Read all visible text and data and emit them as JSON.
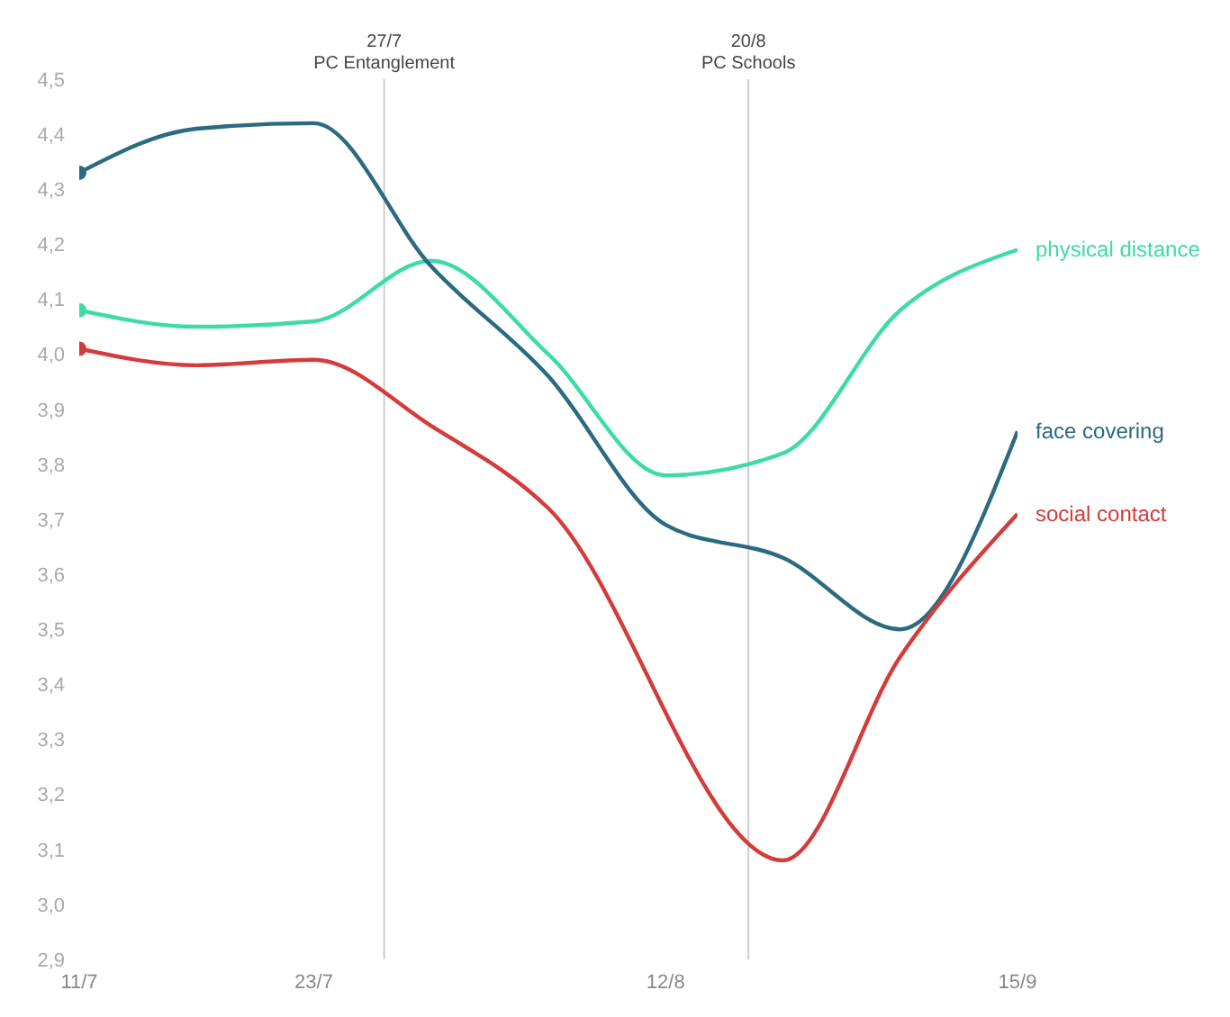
{
  "chart_data": {
    "type": "line",
    "categories": [
      "11/7",
      null,
      "23/7",
      null,
      null,
      "12/8",
      null,
      null,
      "15/9"
    ],
    "ylim": [
      2.9,
      4.5
    ],
    "yticks": [
      {
        "value": 2.9,
        "label": "2,9"
      },
      {
        "value": 3.0,
        "label": "3,0"
      },
      {
        "value": 3.1,
        "label": "3,1"
      },
      {
        "value": 3.2,
        "label": "3,2"
      },
      {
        "value": 3.3,
        "label": "3,3"
      },
      {
        "value": 3.4,
        "label": "3,4"
      },
      {
        "value": 3.5,
        "label": "3,5"
      },
      {
        "value": 3.6,
        "label": "3,6"
      },
      {
        "value": 3.7,
        "label": "3,7"
      },
      {
        "value": 3.8,
        "label": "3,8"
      },
      {
        "value": 3.9,
        "label": "3,9"
      },
      {
        "value": 4.0,
        "label": "4,0"
      },
      {
        "value": 4.1,
        "label": "4,1"
      },
      {
        "value": 4.2,
        "label": "4,2"
      },
      {
        "value": 4.3,
        "label": "4,3"
      },
      {
        "value": 4.4,
        "label": "4,4"
      },
      {
        "value": 4.5,
        "label": "4,5"
      }
    ],
    "series": [
      {
        "name": "physical distance",
        "color": "#3ddba6",
        "values": [
          4.08,
          4.05,
          4.06,
          4.17,
          4.0,
          3.78,
          3.82,
          4.08,
          4.19
        ]
      },
      {
        "name": "face covering",
        "color": "#2b6a80",
        "values": [
          4.33,
          4.41,
          4.42,
          4.16,
          3.96,
          3.69,
          3.63,
          3.5,
          3.86
        ]
      },
      {
        "name": "social contact",
        "color": "#d43b3b",
        "values": [
          4.01,
          3.98,
          3.99,
          3.87,
          3.72,
          null,
          3.08,
          3.45,
          3.71
        ]
      }
    ],
    "ref_lines": [
      {
        "axis": "x",
        "value": "27/7",
        "label": "PC Entanglement",
        "color": "#cccccc"
      },
      {
        "axis": "x",
        "value": "20/8",
        "label": "PC Schools",
        "color": "#cccccc"
      }
    ],
    "grid": false,
    "legend": false,
    "line_style": "solid"
  }
}
